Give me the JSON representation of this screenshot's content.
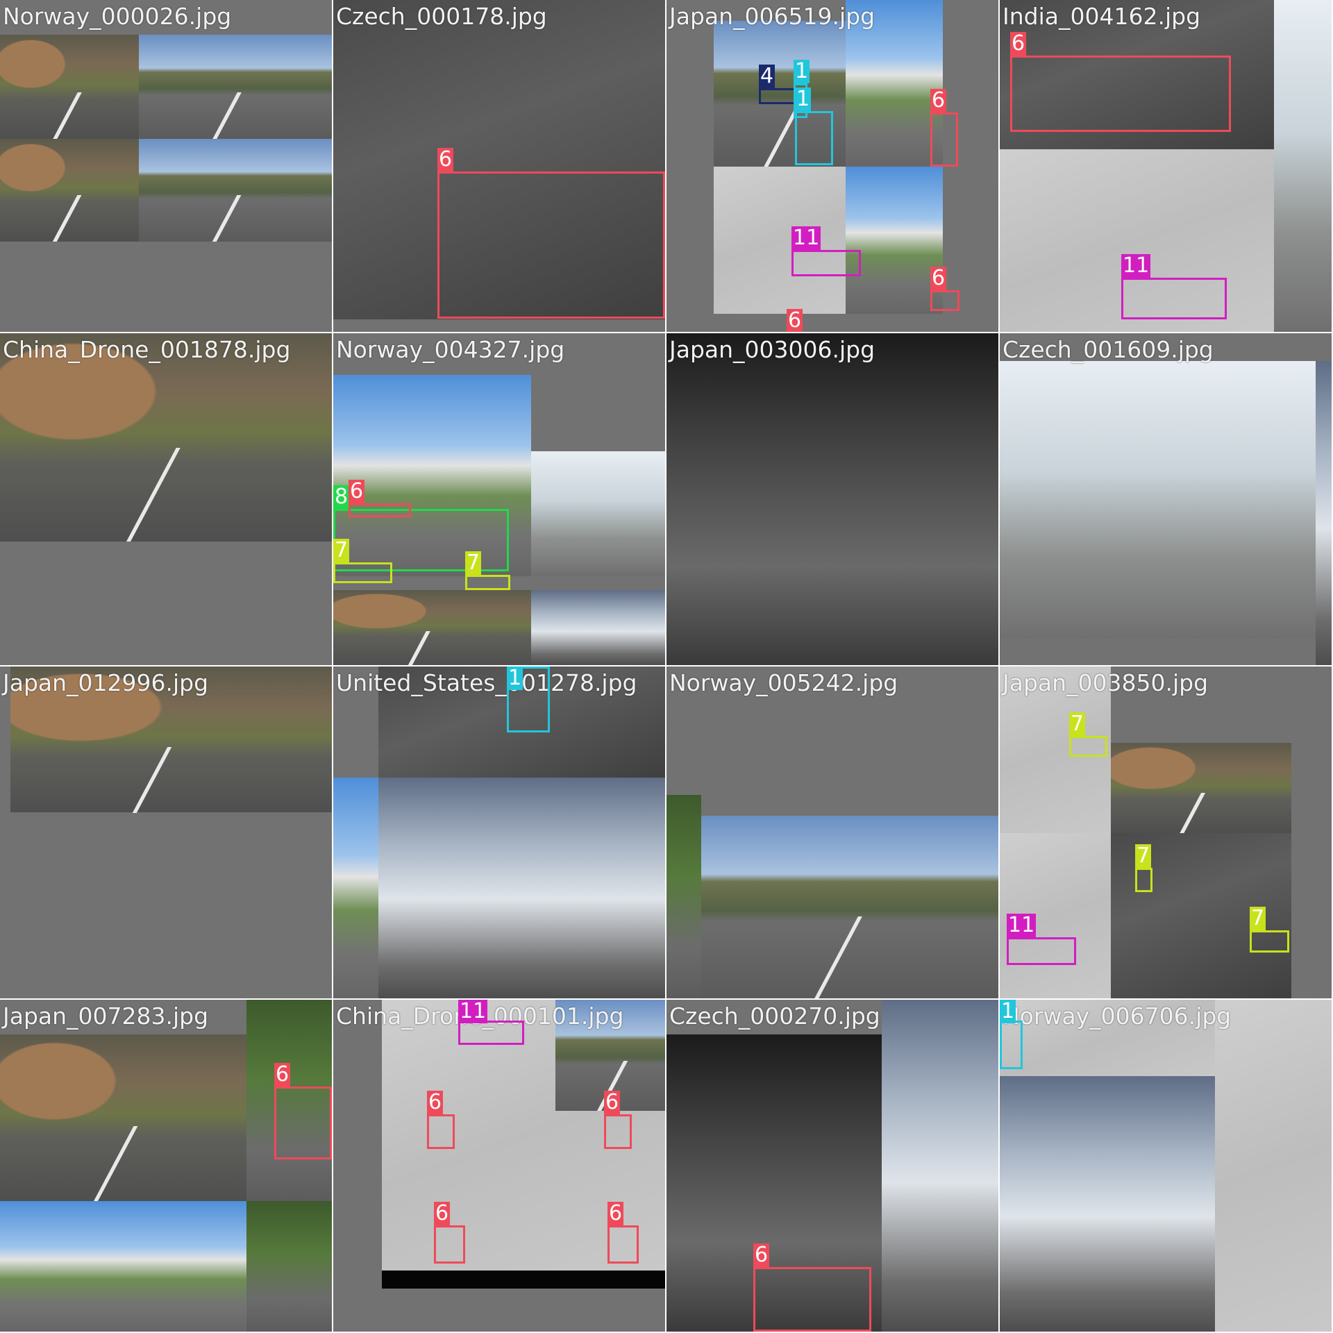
{
  "colors": {
    "class_1": "#22c6dc",
    "class_4": "#1a2a6c",
    "class_6": "#ef4a5a",
    "class_7": "#c8e21c",
    "class_8": "#22d84a",
    "class_11": "#d21ec0",
    "tile_background": "#727272"
  },
  "tiles": [
    {
      "filename": "Norway_000026.jpg",
      "scene": "mosaic-rock-roads",
      "boxes": []
    },
    {
      "filename": "Czech_000178.jpg",
      "scene": "asphalt-street",
      "boxes": [
        {
          "label": "6",
          "class_color": "class_6"
        }
      ]
    },
    {
      "filename": "Japan_006519.jpg",
      "scene": "mosaic-japan-houses",
      "boxes": [
        {
          "label": "4",
          "class_color": "class_4"
        },
        {
          "label": "1",
          "class_color": "class_1"
        },
        {
          "label": "1",
          "class_color": "class_1"
        },
        {
          "label": "6",
          "class_color": "class_6"
        },
        {
          "label": "11",
          "class_color": "class_11"
        },
        {
          "label": "6",
          "class_color": "class_6"
        },
        {
          "label": "6",
          "class_color": "class_6"
        }
      ]
    },
    {
      "filename": "India_004162.jpg",
      "scene": "mosaic-gray-road",
      "boxes": [
        {
          "label": "6",
          "class_color": "class_6"
        },
        {
          "label": "11",
          "class_color": "class_11"
        }
      ]
    },
    {
      "filename": "China_Drone_001878.jpg",
      "scene": "rock-road-wide",
      "boxes": []
    },
    {
      "filename": "Norway_004327.jpg",
      "scene": "mosaic-crosswalk",
      "boxes": [
        {
          "label": "8",
          "class_color": "class_8"
        },
        {
          "label": "6",
          "class_color": "class_6"
        },
        {
          "label": "7",
          "class_color": "class_7"
        },
        {
          "label": "7",
          "class_color": "class_7"
        }
      ]
    },
    {
      "filename": "Japan_003006.jpg",
      "scene": "mosaic-dark-street",
      "boxes": []
    },
    {
      "filename": "Czech_001609.jpg",
      "scene": "snow-road",
      "boxes": []
    },
    {
      "filename": "Japan_012996.jpg",
      "scene": "rock-road-half",
      "boxes": []
    },
    {
      "filename": "United_States_001278.jpg",
      "scene": "mosaic-sky-trees",
      "boxes": [
        {
          "label": "1",
          "class_color": "class_1"
        }
      ]
    },
    {
      "filename": "Norway_005242.jpg",
      "scene": "valley-road",
      "boxes": []
    },
    {
      "filename": "Japan_003850.jpg",
      "scene": "mosaic-rural",
      "boxes": [
        {
          "label": "7",
          "class_color": "class_7"
        },
        {
          "label": "7",
          "class_color": "class_7"
        },
        {
          "label": "11",
          "class_color": "class_11"
        },
        {
          "label": "7",
          "class_color": "class_7"
        }
      ]
    },
    {
      "filename": "Japan_007283.jpg",
      "scene": "mosaic-houses-greenery",
      "boxes": [
        {
          "label": "6",
          "class_color": "class_6"
        }
      ]
    },
    {
      "filename": "China_Drone_000101.jpg",
      "scene": "mosaic-concrete",
      "boxes": [
        {
          "label": "11",
          "class_color": "class_11"
        },
        {
          "label": "6",
          "class_color": "class_6"
        },
        {
          "label": "6",
          "class_color": "class_6"
        },
        {
          "label": "6",
          "class_color": "class_6"
        },
        {
          "label": "6",
          "class_color": "class_6"
        }
      ]
    },
    {
      "filename": "Czech_000270.jpg",
      "scene": "mosaic-guardrail",
      "boxes": [
        {
          "label": "6",
          "class_color": "class_6"
        }
      ]
    },
    {
      "filename": "Norway_006706.jpg",
      "scene": "mosaic-highway",
      "boxes": [
        {
          "label": "1",
          "class_color": "class_1"
        }
      ]
    }
  ]
}
